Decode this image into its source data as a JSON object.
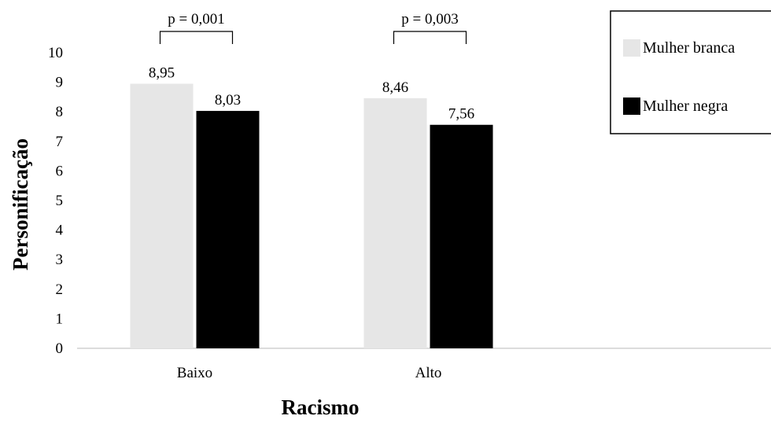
{
  "chart_data": {
    "type": "bar",
    "categories": [
      "Baixo",
      "Alto"
    ],
    "series": [
      {
        "name": "Mulher branca",
        "color": "#e6e6e6",
        "values": [
          8.95,
          8.46
        ]
      },
      {
        "name": "Mulher negra",
        "color": "#000000",
        "values": [
          8.03,
          7.56
        ]
      }
    ],
    "data_labels": [
      [
        "8,95",
        "8,46"
      ],
      [
        "8,03",
        "7,56"
      ]
    ],
    "significance": [
      "p = 0,001",
      "p = 0,003"
    ],
    "xlabel": "Racismo",
    "ylabel": "Personificação",
    "ylim": [
      0,
      10
    ],
    "yticks": [
      "0",
      "1",
      "2",
      "3",
      "4",
      "5",
      "6",
      "7",
      "8",
      "9",
      "10"
    ],
    "grid": false,
    "legend_position": "top-right"
  }
}
